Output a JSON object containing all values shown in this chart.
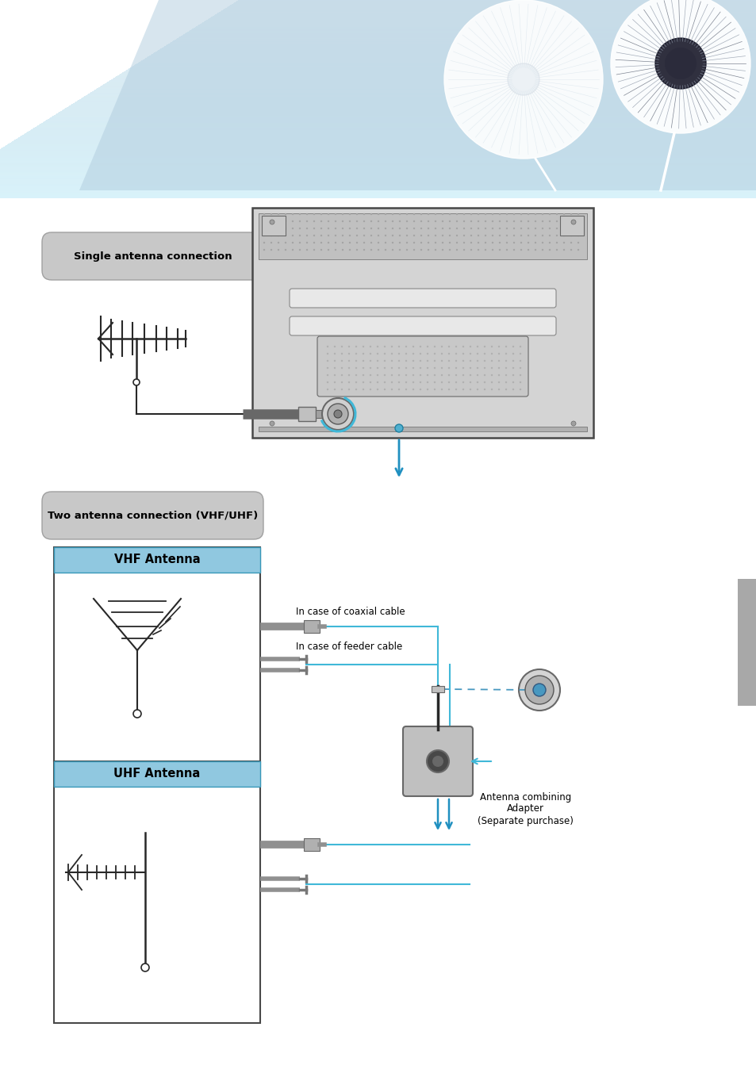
{
  "bg_color": "#ffffff",
  "page_width": 9.54,
  "page_height": 13.48,
  "section1_label": "Single antenna connection",
  "section2_label": "Two antenna connection (VHF/UHF)",
  "vhf_label": "VHF Antenna",
  "uhf_label": "UHF Antenna",
  "coaxial_label": "In case of coaxial cable",
  "feeder_label": "In case of feeder cable",
  "adapter_label": "Antenna combining\nAdapter\n(Separate purchase)",
  "line_blue": "#40b8d8",
  "arrow_blue": "#2090c0",
  "header_blue": "#a8ccde",
  "box_blue_header": "#90c8e0"
}
